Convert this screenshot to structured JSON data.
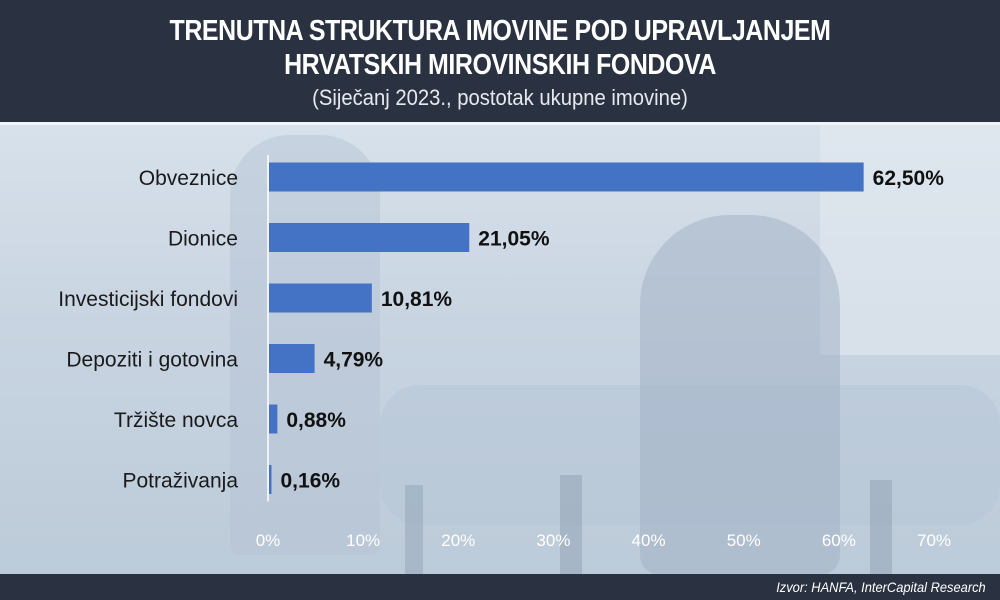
{
  "header": {
    "title_line1": "TRENUTNA STRUKTURA IMOVINE POD UPRAVLJANJEM",
    "title_line2": "HRVATSKIH MIROVINSKIH FONDOVA",
    "subtitle": "(Siječanj 2023., postotak ukupne imovine)"
  },
  "footer": {
    "source": "Izvor: HANFA, InterCapital Research"
  },
  "colors": {
    "bar": "#4472c4",
    "header_bg": "#2a3242",
    "panel_bg": "#cdd8e4",
    "label_text": "#1a1a1a",
    "tick_text": "#ffffff"
  },
  "chart_data": {
    "type": "bar",
    "orientation": "horizontal",
    "title": "TRENUTNA STRUKTURA IMOVINE POD UPRAVLJANJEM HRVATSKIH MIROVINSKIH FONDOVA",
    "subtitle": "(Siječanj 2023., postotak ukupne imovine)",
    "categories": [
      "Obveznice",
      "Dionice",
      "Investicijski fondovi",
      "Depoziti i gotovina",
      "Tržište novca",
      "Potraživanja"
    ],
    "values": [
      62.5,
      21.05,
      10.81,
      4.79,
      0.88,
      0.16
    ],
    "value_labels": [
      "62,50%",
      "21,05%",
      "10,81%",
      "4,79%",
      "0,88%",
      "0,16%"
    ],
    "xlim": [
      0,
      70
    ],
    "xticks": [
      0,
      10,
      20,
      30,
      40,
      50,
      60,
      70
    ],
    "xtick_labels": [
      "0%",
      "10%",
      "20%",
      "30%",
      "40%",
      "50%",
      "60%",
      "70%"
    ],
    "xlabel": "",
    "ylabel": "",
    "grid": false,
    "legend": "none"
  }
}
